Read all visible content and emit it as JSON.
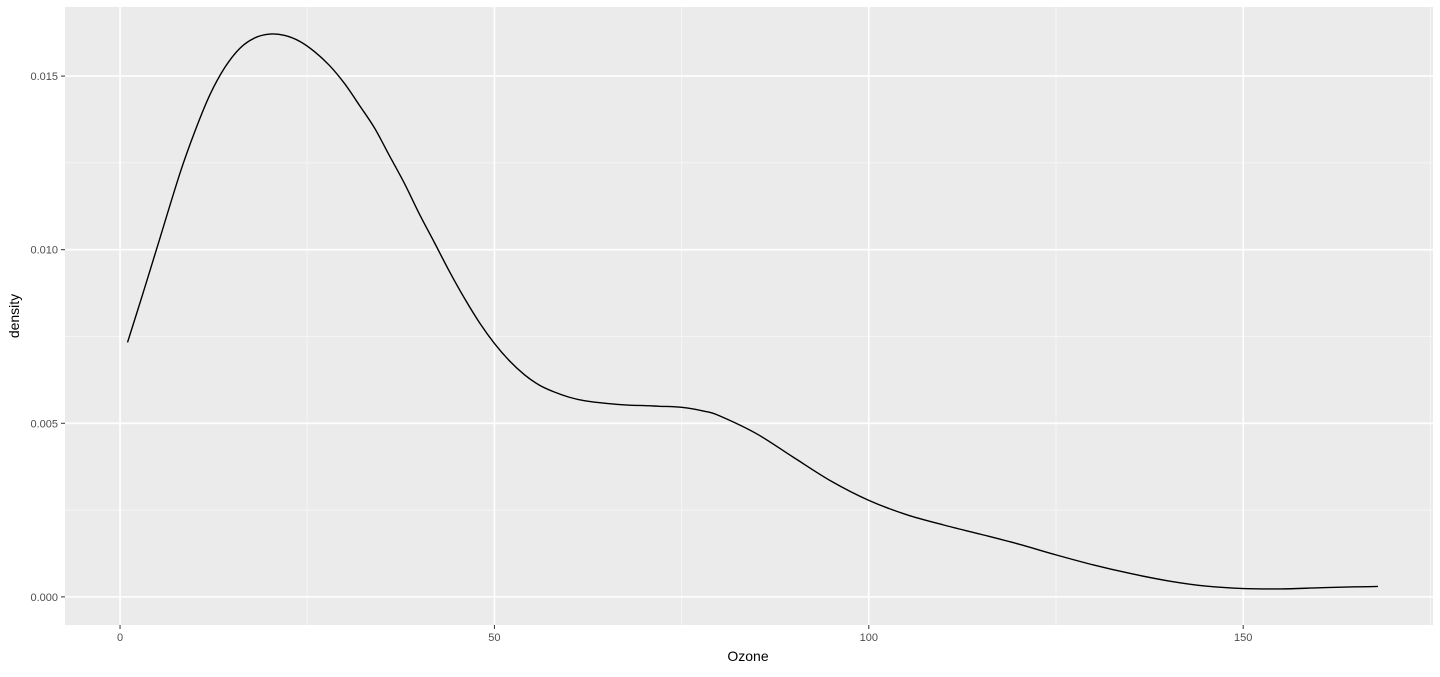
{
  "chart_data": {
    "type": "line",
    "title": "",
    "xlabel": "Ozone",
    "ylabel": "density",
    "xlim": [
      -7.35,
      175.35
    ],
    "ylim": [
      -0.00081,
      0.01699
    ],
    "x_ticks": [
      0,
      50,
      100,
      150
    ],
    "x_tick_labels": [
      "0",
      "50",
      "100",
      "150"
    ],
    "x_minor_ticks": [
      25,
      75,
      125,
      175
    ],
    "y_ticks": [
      0.0,
      0.005,
      0.01,
      0.015
    ],
    "y_tick_labels": [
      "0.000",
      "0.005",
      "0.010",
      "0.015"
    ],
    "y_minor_ticks": [
      0.0025,
      0.0075,
      0.0125
    ],
    "grid": true,
    "legend": "none",
    "colors": {
      "panel_background": "#ebebeb",
      "grid_major": "#ffffff",
      "grid_minor": "#f5f5f5",
      "line": "#000000",
      "tick": "#333333"
    },
    "series": [
      {
        "x": [
          1,
          3,
          5,
          8,
          10,
          12,
          14,
          16,
          18,
          20,
          22,
          24,
          26,
          28,
          30,
          32,
          34,
          36,
          38,
          40,
          42,
          44,
          46,
          48,
          50,
          52,
          54,
          56,
          58,
          60,
          62,
          65,
          68,
          70,
          72,
          75,
          78,
          80,
          85,
          90,
          95,
          100,
          105,
          110,
          115,
          120,
          125,
          130,
          135,
          140,
          145,
          150,
          155,
          160,
          165,
          168
        ],
        "y": [
          0.00733,
          0.0087,
          0.0101,
          0.0122,
          0.01341,
          0.01446,
          0.01525,
          0.0158,
          0.0161,
          0.01621,
          0.01617,
          0.016,
          0.0157,
          0.0153,
          0.01478,
          0.01415,
          0.0135,
          0.0127,
          0.0119,
          0.01102,
          0.0102,
          0.00937,
          0.0086,
          0.0079,
          0.0073,
          0.0068,
          0.0064,
          0.0061,
          0.0059,
          0.00575,
          0.00565,
          0.00557,
          0.00552,
          0.00551,
          0.00549,
          0.00546,
          0.00535,
          0.00522,
          0.0047,
          0.00401,
          0.00333,
          0.00278,
          0.00237,
          0.00207,
          0.0018,
          0.00152,
          0.00121,
          0.00092,
          0.00067,
          0.00046,
          0.00031,
          0.00024,
          0.00023,
          0.00026,
          0.00029,
          0.0003
        ]
      }
    ]
  }
}
